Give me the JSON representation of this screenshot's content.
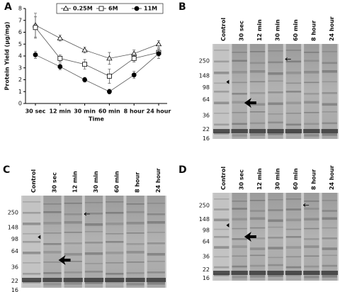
{
  "chart_data": {
    "type": "line",
    "panel": "A",
    "ylabel": "Protein Yield (µg/mg)",
    "xlabel": "Time",
    "categories": [
      "30 sec",
      "12 min",
      "30 min",
      "60 min",
      "8 hour",
      "24 hour"
    ],
    "ylim": [
      0,
      8
    ],
    "yticks": [
      0,
      1,
      2,
      3,
      4,
      5,
      6,
      7,
      8
    ],
    "legend": "top",
    "series": [
      {
        "name": "0.25M",
        "color": "#000000",
        "marker": "triangle",
        "filled": false,
        "values": [
          6.6,
          5.5,
          4.5,
          3.8,
          4.2,
          5.0
        ],
        "errors": [
          1.0,
          0.25,
          0.25,
          0.5,
          0.3,
          0.3
        ]
      },
      {
        "name": "6M",
        "color": "#000000",
        "marker": "square",
        "filled": false,
        "values": [
          6.4,
          3.8,
          3.3,
          2.3,
          3.8,
          4.3
        ],
        "errors": [
          0.9,
          0.3,
          0.4,
          0.6,
          0.3,
          0.3
        ]
      },
      {
        "name": "11M",
        "color": "#000000",
        "marker": "circle",
        "filled": true,
        "values": [
          4.1,
          3.1,
          2.0,
          1.0,
          2.4,
          4.2
        ],
        "errors": [
          0.3,
          0.25,
          0.2,
          0.2,
          0.3,
          0.4
        ]
      }
    ]
  },
  "gels": [
    {
      "panel": "B",
      "lanes": [
        "Control",
        "30 sec",
        "12 min",
        "30 min",
        "60 min",
        "8 hour",
        "24 hour"
      ],
      "markers": [
        250,
        148,
        98,
        64,
        36,
        22,
        16
      ]
    },
    {
      "panel": "C",
      "lanes": [
        "Control",
        "30 sec",
        "12 min",
        "30 min",
        "60 min",
        "8 hour",
        "24 hour"
      ],
      "markers": [
        250,
        148,
        98,
        64,
        36,
        22,
        16
      ]
    },
    {
      "panel": "D",
      "lanes": [
        "Control",
        "30 sec",
        "12 min",
        "30 min",
        "60 min",
        "8 hour",
        "24 hour"
      ],
      "markers": [
        250,
        148,
        98,
        64,
        36,
        22,
        16
      ]
    }
  ]
}
